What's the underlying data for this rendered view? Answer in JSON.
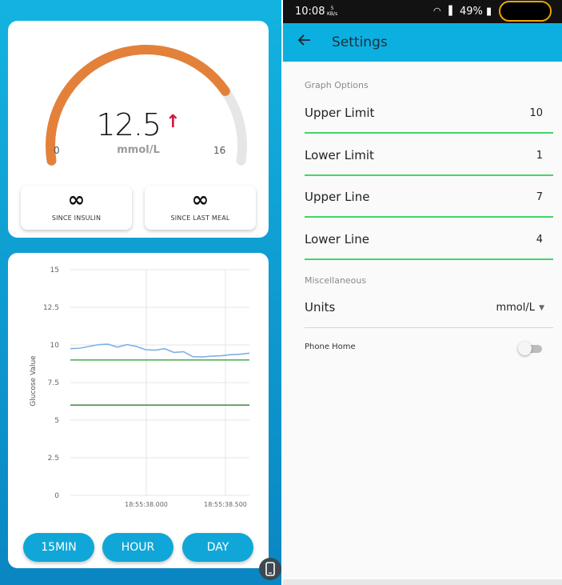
{
  "gauge": {
    "value": "12.5",
    "trend_icon": "arrow-up-icon",
    "unit": "mmol/L",
    "min_label": "0",
    "max_label": "16",
    "value_fraction": 0.78,
    "colors": {
      "arc": "#e3813b",
      "track": "#e6e6e6",
      "trend": "#d4123b"
    }
  },
  "tiles": [
    {
      "value": "∞",
      "label": "SINCE INSULIN"
    },
    {
      "value": "∞",
      "label": "SINCE LAST MEAL"
    }
  ],
  "chart_data": {
    "type": "line",
    "ylabel": "Glucose Value",
    "ylim": [
      0,
      15
    ],
    "yticks": [
      "15",
      "12.5",
      "10",
      "7.5",
      "5",
      "2.5",
      "0"
    ],
    "xtick_labels": [
      "18:55:38.000",
      "18:55:38.500"
    ],
    "grid": true,
    "series": [
      {
        "values": [
          9.75,
          9.78,
          9.9,
          10.02,
          10.05,
          9.85,
          10.02,
          9.9,
          9.68,
          9.65,
          9.75,
          9.5,
          9.55,
          9.22,
          9.2,
          9.25,
          9.28,
          9.35,
          9.38,
          9.45
        ],
        "color": "#7fb0e6"
      }
    ],
    "reference_lines": [
      {
        "y": 9.0,
        "color": "#3aa53a"
      },
      {
        "y": 6.0,
        "color": "#2f7d32"
      }
    ]
  },
  "range_buttons": [
    "15MIN",
    "HOUR",
    "DAY"
  ],
  "phone_fab_icon": "phone-icon",
  "statusbar": {
    "time": "10:08",
    "speed_value": "5",
    "speed_unit": "KB/s",
    "battery": "49%"
  },
  "appbar": {
    "back_icon": "arrow-left-icon",
    "title": "Settings"
  },
  "settings": {
    "graph_section": "Graph Options",
    "rows": [
      {
        "label": "Upper Limit",
        "value": "10"
      },
      {
        "label": "Lower Limit",
        "value": "1"
      },
      {
        "label": "Upper Line",
        "value": "7"
      },
      {
        "label": "Lower Line",
        "value": "4"
      }
    ],
    "misc_section": "Miscellaneous",
    "units": {
      "label": "Units",
      "value": "mmol/L"
    },
    "phone_home": {
      "label": "Phone Home",
      "enabled": false
    },
    "accent_color": "#45d46a"
  }
}
